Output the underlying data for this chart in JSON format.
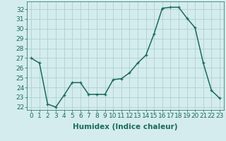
{
  "x": [
    0,
    1,
    2,
    3,
    4,
    5,
    6,
    7,
    8,
    9,
    10,
    11,
    12,
    13,
    14,
    15,
    16,
    17,
    18,
    19,
    20,
    21,
    22,
    23
  ],
  "y": [
    27,
    26.5,
    22.3,
    22.0,
    23.2,
    24.5,
    24.5,
    23.3,
    23.3,
    23.3,
    24.8,
    24.9,
    25.5,
    26.5,
    27.3,
    29.5,
    32.1,
    32.2,
    32.2,
    31.1,
    30.1,
    26.5,
    23.7,
    22.9
  ],
  "line_color": "#1a6b5a",
  "marker": "+",
  "marker_size": 3,
  "bg_color": "#d4eced",
  "grid_color": "#aed0d0",
  "xlabel": "Humidex (Indice chaleur)",
  "ylabel_ticks": [
    22,
    23,
    24,
    25,
    26,
    27,
    28,
    29,
    30,
    31,
    32
  ],
  "ylim": [
    21.7,
    32.8
  ],
  "xlim": [
    -0.5,
    23.5
  ],
  "xticks": [
    0,
    1,
    2,
    3,
    4,
    5,
    6,
    7,
    8,
    9,
    10,
    11,
    12,
    13,
    14,
    15,
    16,
    17,
    18,
    19,
    20,
    21,
    22,
    23
  ],
  "xtick_labels": [
    "0",
    "1",
    "2",
    "3",
    "4",
    "5",
    "6",
    "7",
    "8",
    "9",
    "10",
    "11",
    "12",
    "13",
    "14",
    "15",
    "16",
    "17",
    "18",
    "19",
    "20",
    "21",
    "22",
    "23"
  ],
  "font_size": 6.5,
  "xlabel_fontsize": 7.5,
  "line_width": 1.1
}
